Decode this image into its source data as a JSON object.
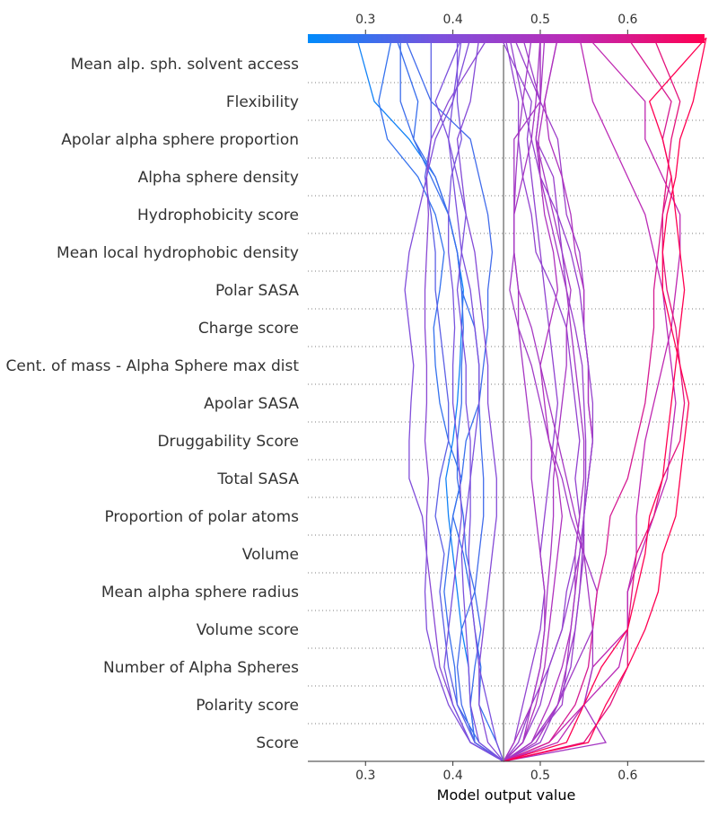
{
  "chart_data": {
    "type": "line",
    "subtype": "shap-decision-plot",
    "title": "",
    "xlabel": "Model output value",
    "ylabel": "",
    "xlim": [
      0.234,
      0.688
    ],
    "xticks": [
      "0.3",
      "0.4",
      "0.5",
      "0.6"
    ],
    "xtick_values": [
      0.3,
      0.4,
      0.5,
      0.6
    ],
    "base_value": 0.458,
    "grid": "dotted horizontal lines",
    "colorbar": {
      "position": "top",
      "colormap": [
        "#008bfb",
        "#7c51dd",
        "#bd2ab5",
        "#ff0052"
      ],
      "range": [
        0.27,
        0.69
      ]
    },
    "features": [
      "Mean alp. sph. solvent access",
      "Flexibility",
      "Apolar alpha sphere proportion",
      "Alpha sphere density",
      "Hydrophobicity score",
      "Mean local hydrophobic density",
      "Polar SASA",
      "Charge score",
      "Cent. of mass - Alpha Sphere max dist",
      "Apolar SASA",
      "Druggability Score",
      "Total SASA",
      "Proportion of polar atoms",
      "Volume",
      "Mean alpha sphere radius",
      "Volume score",
      "Number of Alpha Spheres",
      "Polarity score",
      "Score"
    ],
    "series": [
      {
        "values": [
          0.458,
          0.425,
          0.42,
          0.418,
          0.41,
          0.405,
          0.4,
          0.395,
          0.392,
          0.4,
          0.405,
          0.408,
          0.41,
          0.412,
          0.405,
          0.395,
          0.38,
          0.35,
          0.31,
          0.29
        ]
      },
      {
        "values": [
          0.458,
          0.425,
          0.42,
          0.425,
          0.432,
          0.425,
          0.415,
          0.412,
          0.405,
          0.405,
          0.41,
          0.41,
          0.412,
          0.41,
          0.405,
          0.395,
          0.38,
          0.355,
          0.34,
          0.34
        ]
      },
      {
        "values": [
          0.458,
          0.43,
          0.405,
          0.402,
          0.395,
          0.39,
          0.395,
          0.4,
          0.41,
          0.415,
          0.43,
          0.43,
          0.425,
          0.41,
          0.405,
          0.395,
          0.375,
          0.355,
          0.36,
          0.335
        ]
      },
      {
        "values": [
          0.458,
          0.45,
          0.43,
          0.432,
          0.425,
          0.42,
          0.412,
          0.4,
          0.41,
          0.395,
          0.385,
          0.38,
          0.378,
          0.385,
          0.39,
          0.38,
          0.36,
          0.325,
          0.315,
          0.33
        ]
      },
      {
        "values": [
          0.458,
          0.425,
          0.41,
          0.405,
          0.41,
          0.425,
          0.43,
          0.435,
          0.435,
          0.432,
          0.43,
          0.435,
          0.44,
          0.44,
          0.445,
          0.44,
          0.43,
          0.42,
          0.375,
          0.345
        ]
      },
      {
        "values": [
          0.458,
          0.47,
          0.48,
          0.49,
          0.5,
          0.505,
          0.5,
          0.505,
          0.51,
          0.515,
          0.52,
          0.515,
          0.51,
          0.505,
          0.5,
          0.495,
          0.49,
          0.485,
          0.49,
          0.455
        ]
      },
      {
        "values": [
          0.458,
          0.475,
          0.49,
          0.51,
          0.525,
          0.53,
          0.54,
          0.545,
          0.54,
          0.545,
          0.54,
          0.535,
          0.53,
          0.515,
          0.495,
          0.49,
          0.48,
          0.475,
          0.475,
          0.46
        ]
      },
      {
        "values": [
          0.458,
          0.425,
          0.405,
          0.395,
          0.39,
          0.385,
          0.39,
          0.38,
          0.385,
          0.395,
          0.395,
          0.39,
          0.385,
          0.38,
          0.38,
          0.375,
          0.368,
          0.375,
          0.375,
          0.375
        ]
      },
      {
        "values": [
          0.458,
          0.42,
          0.4,
          0.385,
          0.38,
          0.375,
          0.37,
          0.37,
          0.372,
          0.368,
          0.37,
          0.37,
          0.368,
          0.368,
          0.37,
          0.372,
          0.37,
          0.375,
          0.395,
          0.44
        ]
      },
      {
        "values": [
          0.458,
          0.42,
          0.395,
          0.38,
          0.37,
          0.368,
          0.37,
          0.365,
          0.35,
          0.35,
          0.352,
          0.355,
          0.35,
          0.345,
          0.35,
          0.36,
          0.37,
          0.38,
          0.4,
          0.42
        ]
      },
      {
        "values": [
          0.458,
          0.42,
          0.4,
          0.39,
          0.395,
          0.4,
          0.405,
          0.41,
          0.408,
          0.405,
          0.4,
          0.4,
          0.402,
          0.4,
          0.395,
          0.395,
          0.398,
          0.41,
          0.405,
          0.405
        ]
      },
      {
        "values": [
          0.458,
          0.45,
          0.44,
          0.43,
          0.425,
          0.42,
          0.418,
          0.42,
          0.42,
          0.425,
          0.43,
          0.43,
          0.425,
          0.42,
          0.41,
          0.405,
          0.4,
          0.395,
          0.38,
          0.41
        ]
      },
      {
        "values": [
          0.458,
          0.44,
          0.43,
          0.43,
          0.435,
          0.44,
          0.445,
          0.45,
          0.45,
          0.445,
          0.44,
          0.44,
          0.435,
          0.43,
          0.425,
          0.415,
          0.41,
          0.405,
          0.42,
          0.43
        ]
      },
      {
        "values": [
          0.458,
          0.43,
          0.42,
          0.418,
          0.415,
          0.412,
          0.41,
          0.415,
          0.42,
          0.42,
          0.415,
          0.415,
          0.41,
          0.405,
          0.41,
          0.415,
          0.405,
          0.395,
          0.4,
          0.41
        ]
      },
      {
        "values": [
          0.458,
          0.49,
          0.525,
          0.53,
          0.54,
          0.545,
          0.55,
          0.55,
          0.555,
          0.56,
          0.555,
          0.555,
          0.55,
          0.55,
          0.545,
          0.53,
          0.525,
          0.52,
          0.5,
          0.48
        ]
      },
      {
        "values": [
          0.458,
          0.49,
          0.51,
          0.525,
          0.535,
          0.54,
          0.545,
          0.55,
          0.555,
          0.56,
          0.555,
          0.555,
          0.55,
          0.55,
          0.54,
          0.535,
          0.525,
          0.51,
          0.505,
          0.52
        ]
      },
      {
        "values": [
          0.458,
          0.47,
          0.49,
          0.5,
          0.505,
          0.508,
          0.512,
          0.515,
          0.515,
          0.52,
          0.525,
          0.53,
          0.53,
          0.535,
          0.525,
          0.515,
          0.505,
          0.495,
          0.5,
          0.505
        ]
      },
      {
        "values": [
          0.458,
          0.48,
          0.5,
          0.51,
          0.525,
          0.535,
          0.545,
          0.55,
          0.555,
          0.56,
          0.56,
          0.555,
          0.55,
          0.545,
          0.535,
          0.52,
          0.5,
          0.49,
          0.48,
          0.465
        ]
      },
      {
        "values": [
          0.458,
          0.5,
          0.52,
          0.535,
          0.54,
          0.545,
          0.548,
          0.55,
          0.552,
          0.552,
          0.55,
          0.548,
          0.54,
          0.53,
          0.525,
          0.52,
          0.515,
          0.495,
          0.5,
          0.47
        ]
      },
      {
        "values": [
          0.458,
          0.51,
          0.55,
          0.56,
          0.6,
          0.6,
          0.61,
          0.61,
          0.615,
          0.62,
          0.63,
          0.64,
          0.65,
          0.655,
          0.66,
          0.66,
          0.64,
          0.62,
          0.62,
          0.555
        ]
      },
      {
        "values": [
          0.458,
          0.49,
          0.52,
          0.54,
          0.56,
          0.565,
          0.55,
          0.535,
          0.525,
          0.51,
          0.5,
          0.49,
          0.475,
          0.465,
          0.47,
          0.47,
          0.472,
          0.475,
          0.48,
          0.49
        ]
      },
      {
        "values": [
          0.458,
          0.48,
          0.495,
          0.505,
          0.51,
          0.515,
          0.52,
          0.525,
          0.52,
          0.51,
          0.505,
          0.5,
          0.51,
          0.52,
          0.515,
          0.505,
          0.5,
          0.498,
          0.505,
          0.52
        ]
      },
      {
        "values": [
          0.458,
          0.495,
          0.52,
          0.53,
          0.535,
          0.54,
          0.54,
          0.545,
          0.55,
          0.55,
          0.545,
          0.54,
          0.535,
          0.53,
          0.52,
          0.51,
          0.5,
          0.495,
          0.5,
          0.5
        ]
      },
      {
        "values": [
          0.458,
          0.51,
          0.54,
          0.555,
          0.56,
          0.565,
          0.575,
          0.58,
          0.6,
          0.61,
          0.62,
          0.625,
          0.63,
          0.63,
          0.635,
          0.64,
          0.65,
          0.64,
          0.65,
          0.6
        ]
      },
      {
        "values": [
          0.458,
          0.48,
          0.49,
          0.5,
          0.505,
          0.505,
          0.5,
          0.495,
          0.49,
          0.49,
          0.485,
          0.48,
          0.475,
          0.475,
          0.47,
          0.47,
          0.47,
          0.47,
          0.5,
          0.5
        ]
      },
      {
        "values": [
          0.458,
          0.52,
          0.55,
          0.59,
          0.6,
          0.6,
          0.615,
          0.63,
          0.645,
          0.65,
          0.655,
          0.65,
          0.645,
          0.64,
          0.63,
          0.62,
          0.6,
          0.58,
          0.56,
          0.545
        ]
      },
      {
        "values": [
          0.458,
          0.575,
          0.55,
          0.56,
          0.56,
          0.555,
          0.55,
          0.54,
          0.53,
          0.52,
          0.51,
          0.5,
          0.49,
          0.475,
          0.47,
          0.47,
          0.48,
          0.49,
          0.495,
          0.5
        ]
      },
      {
        "values": [
          0.458,
          0.55,
          0.58,
          0.6,
          0.6,
          0.605,
          0.61,
          0.63,
          0.64,
          0.66,
          0.665,
          0.66,
          0.655,
          0.645,
          0.64,
          0.64,
          0.645,
          0.65,
          0.66,
          0.63
        ]
      },
      {
        "values": [
          0.458,
          0.53,
          0.55,
          0.57,
          0.6,
          0.61,
          0.62,
          0.625,
          0.64,
          0.645,
          0.65,
          0.655,
          0.66,
          0.665,
          0.66,
          0.655,
          0.65,
          0.64,
          0.625,
          0.69
        ]
      },
      {
        "values": [
          0.458,
          0.555,
          0.575,
          0.6,
          0.62,
          0.635,
          0.64,
          0.655,
          0.66,
          0.665,
          0.67,
          0.66,
          0.65,
          0.64,
          0.64,
          0.645,
          0.655,
          0.66,
          0.675,
          0.69
        ]
      }
    ]
  }
}
